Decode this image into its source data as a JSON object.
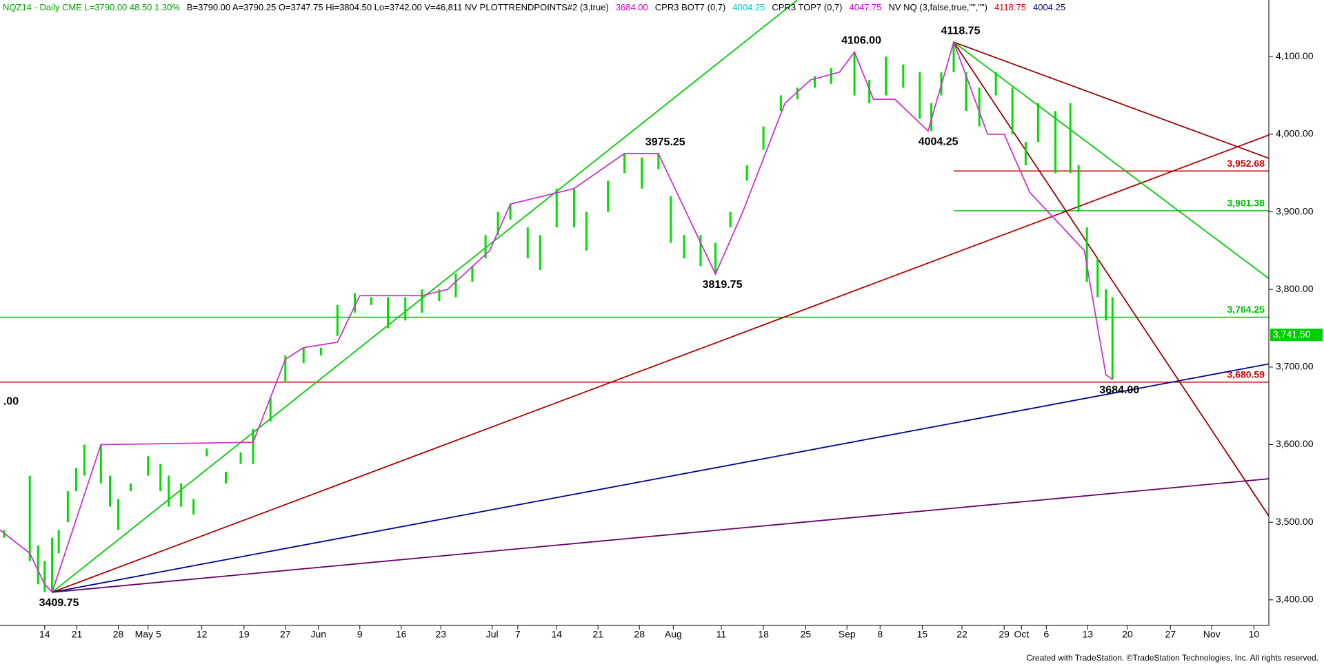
{
  "header": [
    {
      "text": "NQZ14 - Daily  CME  L=3790.00  48.50  1.30%",
      "color": "#00a000"
    },
    {
      "text": "B=3790.00  A=3790.25  O=3747.75  Hi=3804.50  Lo=3742.00  V=46,811  NV  PLOTTRENDPOINTS#2 (3,true)",
      "color": "#000000"
    },
    {
      "text": "3684.00",
      "color": "#cc00cc"
    },
    {
      "text": "CPR3 BOT7 (0,7)",
      "color": "#000000"
    },
    {
      "text": "4004.25",
      "color": "#00cccc"
    },
    {
      "text": "CPR3 TOP7 (0,7)",
      "color": "#000000"
    },
    {
      "text": "4047.75",
      "color": "#cc00cc"
    },
    {
      "text": "NV NQ (3,false,true,\"\",\"\")",
      "color": "#000000"
    },
    {
      "text": "4118.75",
      "color": "#cc0000"
    },
    {
      "text": "4004.25",
      "color": "#000080"
    }
  ],
  "footer": "Created with TradeStation. ©TradeStation Technologies, Inc. All rights reserved.",
  "chart_data": {
    "type": "range-bar",
    "color": "#00dd00",
    "xlim": [
      0,
      153.4
    ],
    "ylim": [
      3367,
      4173
    ],
    "yticks": [
      {
        "value": 3400,
        "label": "3,400.00"
      },
      {
        "value": 3500,
        "label": "3,500.00"
      },
      {
        "value": 3600,
        "label": "3,600.00"
      },
      {
        "value": 3700,
        "label": "3,700.00"
      },
      {
        "value": 3800,
        "label": "3,800.00"
      },
      {
        "value": 3900,
        "label": "3,900.00"
      },
      {
        "value": 4000,
        "label": "4,000.00"
      },
      {
        "value": 4100,
        "label": "4,100.00"
      }
    ],
    "xticks": [
      {
        "value": 5.4,
        "label": "14"
      },
      {
        "value": 9.3,
        "label": "21"
      },
      {
        "value": 14.3,
        "label": "28"
      },
      {
        "value": 17.9,
        "label": "May 5"
      },
      {
        "value": 24.4,
        "label": "12"
      },
      {
        "value": 29.5,
        "label": "19"
      },
      {
        "value": 34.5,
        "label": "27"
      },
      {
        "value": 38.5,
        "label": "Jun"
      },
      {
        "value": 43.5,
        "label": "9"
      },
      {
        "value": 48.5,
        "label": "16"
      },
      {
        "value": 53.3,
        "label": "23"
      },
      {
        "value": 59.5,
        "label": "Jul"
      },
      {
        "value": 62.6,
        "label": "7"
      },
      {
        "value": 67.3,
        "label": "14"
      },
      {
        "value": 72.3,
        "label": "21"
      },
      {
        "value": 77.3,
        "label": "28"
      },
      {
        "value": 81.4,
        "label": "Aug"
      },
      {
        "value": 87.2,
        "label": "11"
      },
      {
        "value": 92.3,
        "label": "18"
      },
      {
        "value": 97.4,
        "label": "25"
      },
      {
        "value": 102.4,
        "label": "Sep"
      },
      {
        "value": 106.4,
        "label": "8"
      },
      {
        "value": 111.5,
        "label": "15"
      },
      {
        "value": 116.3,
        "label": "22"
      },
      {
        "value": 121.4,
        "label": "29"
      },
      {
        "value": 123.5,
        "label": "Oct"
      },
      {
        "value": 126.5,
        "label": "6"
      },
      {
        "value": 131.5,
        "label": "13"
      },
      {
        "value": 136.3,
        "label": "20"
      },
      {
        "value": 141.5,
        "label": "27"
      },
      {
        "value": 146.5,
        "label": "Nov"
      },
      {
        "value": 151.6,
        "label": "10"
      }
    ],
    "x": [
      0.5,
      3.6,
      4.6,
      5.4,
      6.3,
      7.1,
      8.2,
      9.2,
      10.2,
      12.2,
      13.3,
      14.3,
      15.8,
      17.9,
      19.4,
      20.4,
      21.9,
      23.4,
      25,
      27.3,
      29.1,
      30.6,
      32.7,
      34.5,
      36.7,
      38.8,
      40.8,
      42.9,
      44.9,
      46.9,
      49,
      51,
      53.1,
      55.1,
      57.1,
      58.7,
      60.2,
      61.7,
      63.8,
      65.3,
      67.3,
      69.4,
      70.9,
      73.5,
      75.5,
      77.6,
      79.6,
      81.1,
      82.7,
      84.7,
      86.5,
      88.3,
      90.3,
      92.3,
      94.4,
      96.4,
      98.5,
      100.5,
      103.3,
      105.1,
      107.1,
      109.2,
      111.2,
      112.6,
      113.8,
      115.3,
      116.8,
      118.4,
      120.4,
      122.4,
      124,
      125.5,
      127.6,
      129.4,
      130.4,
      131.4,
      132.7,
      133.7,
      134.5
    ],
    "low": [
      3480,
      3450,
      3420,
      3410,
      3409.75,
      3460,
      3500,
      3540,
      3560,
      3550,
      3520,
      3490,
      3540,
      3560,
      3540,
      3520,
      3520,
      3510,
      3585,
      3550,
      3575,
      3575,
      3630,
      3680,
      3705,
      3715,
      3740,
      3770,
      3780,
      3750,
      3760,
      3770,
      3785,
      3790,
      3810,
      3840,
      3870,
      3890,
      3840,
      3825,
      3880,
      3880,
      3850,
      3900,
      3950,
      3930,
      3955,
      3860,
      3840,
      3830,
      3819.75,
      3880,
      3940,
      3980,
      4030,
      4045,
      4060,
      4065,
      4050,
      4040,
      4050,
      4060,
      4020,
      4004.25,
      4050,
      4080,
      4030,
      4010,
      4050,
      4000,
      3960,
      3990,
      3950,
      3950,
      3900,
      3810,
      3790,
      3760,
      3684
    ],
    "high": [
      3490,
      3560,
      3470,
      3450,
      3480,
      3490,
      3540,
      3570,
      3600,
      3600,
      3560,
      3530,
      3550,
      3585,
      3575,
      3560,
      3550,
      3530,
      3595,
      3565,
      3590,
      3620,
      3660,
      3715,
      3725,
      3725,
      3780,
      3795,
      3790,
      3790,
      3790,
      3800,
      3800,
      3820,
      3830,
      3870,
      3900,
      3910,
      3880,
      3870,
      3930,
      3930,
      3900,
      3940,
      3975.25,
      3970,
      3975,
      3920,
      3870,
      3870,
      3860,
      3900,
      3960,
      4010,
      4050,
      4060,
      4075,
      4085,
      4106,
      4070,
      4100,
      4090,
      4080,
      4040,
      4080,
      4118.75,
      4080,
      4060,
      4080,
      4060,
      3990,
      4040,
      4030,
      4040,
      3960,
      3880,
      3840,
      3800,
      3790
    ],
    "swing": {
      "color": "#cc33cc",
      "x": [
        0,
        3.6,
        5.4,
        6.3,
        12.2,
        30.6,
        34.5,
        36.7,
        40.8,
        43.5,
        51,
        54.1,
        59.2,
        61.7,
        69.4,
        75.5,
        79.6,
        86.5,
        89.8,
        94.9,
        98,
        101.5,
        103.3,
        105.6,
        108.2,
        112.2,
        115.3,
        119.4,
        121.4,
        124.5,
        131.1,
        133.7,
        134.5
      ],
      "values": [
        3490,
        3460,
        3420,
        3409.75,
        3600,
        3603,
        3710,
        3725,
        3732,
        3792,
        3792,
        3800,
        3850,
        3910,
        3930,
        3975.25,
        3975,
        3819.75,
        3900,
        4040,
        4070,
        4080,
        4106,
        4045,
        4045,
        4004.25,
        4118.75,
        4000,
        4000,
        3925,
        3850,
        3690,
        3684
      ]
    },
    "trendlines": [
      {
        "color": "#00cc00",
        "x": [
          6.3,
          96.4
        ],
        "y": [
          3409.75,
          4173
        ]
      },
      {
        "color": "#b00000",
        "x": [
          6.3,
          153.4
        ],
        "y": [
          3409.75,
          3999
        ]
      },
      {
        "color": "#000099",
        "x": [
          6.3,
          153.4
        ],
        "y": [
          3409.75,
          3704
        ]
      },
      {
        "color": "#660066",
        "x": [
          6.3,
          153.4
        ],
        "y": [
          3409.75,
          3556
        ]
      },
      {
        "color": "#990000",
        "x": [
          115.3,
          153.4
        ],
        "y": [
          4118.75,
          3969
        ]
      },
      {
        "color": "#990000",
        "x": [
          115.3,
          153.4
        ],
        "y": [
          4118.75,
          3508
        ]
      },
      {
        "color": "#00cc00",
        "x": [
          115.3,
          153.4
        ],
        "y": [
          4118.75,
          3814
        ]
      }
    ],
    "levels": [
      {
        "value": 3952.68,
        "label": "3,952.68",
        "color": "#cc0000",
        "start": 115.3
      },
      {
        "value": 3901.38,
        "label": "3,901.38",
        "color": "#00bb00",
        "start": 115.3
      },
      {
        "value": 3764.25,
        "label": "3,764.25",
        "color": "#00bb00",
        "start": 0
      },
      {
        "value": 3680.59,
        "label": "3,680.59",
        "color": "#cc0000",
        "start": 0
      }
    ],
    "last_price": {
      "value": 3741.5,
      "label": "3,741.50",
      "color": "#00cc00"
    },
    "annotations": [
      {
        "label": "4106.00",
        "x": 103.3,
        "y": 4106
      },
      {
        "label": "4118.75",
        "x": 115.3,
        "y": 4118.75
      },
      {
        "label": "3975.25",
        "x": 79.6,
        "y": 3975.25
      },
      {
        "label": "3819.75",
        "x": 86.5,
        "y": 3819.75
      },
      {
        "label": "4004.25",
        "x": 112.6,
        "y": 4004.25
      },
      {
        "label": "3409.75",
        "x": 6.3,
        "y": 3409.75
      },
      {
        "label": "3684.00",
        "x": 134.5,
        "y": 3684
      },
      {
        "label": ".00",
        "x": 0.5,
        "y": 3641
      }
    ]
  }
}
